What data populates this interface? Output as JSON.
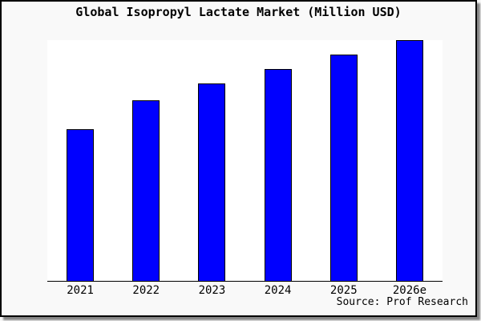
{
  "title": "Global Isopropyl Lactate Market (Million USD)",
  "source_note": "Source: Prof Research",
  "colors": {
    "bar_fill": "#0000FF",
    "bar_border": "#000000",
    "canvas_background": "#F9F9F9",
    "plot_background": "#FFFFFF",
    "frame_border": "#000000",
    "axis_line": "#000000",
    "text": "#000000"
  },
  "chart_data": {
    "type": "bar",
    "title": "Global Isopropyl Lactate Market (Million USD)",
    "categories": [
      "2021",
      "2022",
      "2023",
      "2024",
      "2025",
      "2026e"
    ],
    "values": [
      63,
      75,
      82,
      88,
      94,
      100
    ],
    "value_scale_note": "no numeric y-axis shown; values are relative heights with tallest bar (2026e) = 100",
    "xlabel": "",
    "ylabel": "",
    "ylim": [
      0,
      100
    ],
    "grid": false,
    "legend": false,
    "annotations": [
      "Source: Prof Research"
    ]
  }
}
